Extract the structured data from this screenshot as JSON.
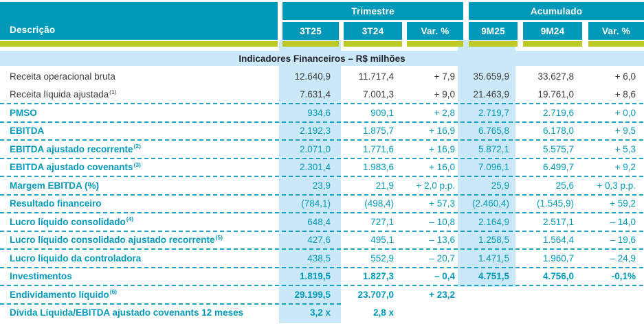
{
  "table": {
    "header": {
      "description_label": "Descrição",
      "groups": [
        {
          "label": "Trimestre",
          "cols": [
            "3T25",
            "3T24",
            "Var. %"
          ]
        },
        {
          "label": "Acumulado",
          "cols": [
            "9M25",
            "9M24",
            "Var. %"
          ]
        }
      ]
    },
    "section_title": "Indicadores Financeiros – R$ milhões",
    "rows": [
      {
        "label": "Receita operacional bruta",
        "sup": "",
        "style": "plain",
        "divider": "none",
        "values": [
          "12.640,9",
          "11.717,4",
          "+ 7,9",
          "35.659,9",
          "33.627,8",
          "+ 6,0"
        ]
      },
      {
        "label": "Receita líquida ajustada",
        "sup": "(1)",
        "style": "plain",
        "divider": "full",
        "values": [
          "7.631,4",
          "7.001,3",
          "+ 9,0",
          "21.463,9",
          "19.761,0",
          "+ 8,6"
        ]
      },
      {
        "label": "PMSO",
        "sup": "",
        "style": "teal",
        "divider": "full",
        "values": [
          "934,6",
          "909,1",
          "+ 2,8",
          "2.719,7",
          "2.719,6",
          "+ 0,0"
        ]
      },
      {
        "label": "EBITDA",
        "sup": "",
        "style": "teal",
        "divider": "full",
        "values": [
          "2.192,3",
          "1.875,7",
          "+ 16,9",
          "6.765,8",
          "6.178,0",
          "+ 9,5"
        ]
      },
      {
        "label": "EBITDA ajustado recorrente",
        "sup": "(2)",
        "style": "teal",
        "divider": "full",
        "values": [
          "2.071,0",
          "1.771,6",
          "+ 16,9",
          "5.872,1",
          "5.575,7",
          "+ 5,3"
        ]
      },
      {
        "label": "EBITDA ajustado covenants",
        "sup": "(3)",
        "style": "teal",
        "divider": "full",
        "values": [
          "2.301,4",
          "1.983,6",
          "+ 16,0",
          "7.096,1",
          "6.499,7",
          "+ 9,2"
        ]
      },
      {
        "label": "Margem EBITDA (%)",
        "sup": "",
        "style": "teal",
        "divider": "full",
        "values": [
          "23,9",
          "21,9",
          "+ 2,0 p.p.",
          "25,9",
          "25,6",
          "+ 0,3 p.p."
        ]
      },
      {
        "label": "Resultado financeiro",
        "sup": "",
        "style": "teal",
        "divider": "full",
        "values": [
          "(784,1)",
          "(498,4)",
          "+ 57,3",
          "(2.460,4)",
          "(1.545,9)",
          "+ 59,2"
        ]
      },
      {
        "label": "Lucro líquido consolidado",
        "sup": "(4)",
        "style": "teal",
        "divider": "full",
        "values": [
          "648,4",
          "727,1",
          "– 10,8",
          "2.164,9",
          "2.517,1",
          "– 14,0"
        ]
      },
      {
        "label": "Lucro líquido consolidado ajustado recorrente",
        "sup": "(5)",
        "style": "teal",
        "divider": "full",
        "values": [
          "427,6",
          "495,1",
          "– 13,6",
          "1.258,5",
          "1.564,4",
          "– 19,6"
        ]
      },
      {
        "label": "Lucro líquido da controladora",
        "sup": "",
        "style": "teal",
        "divider": "full",
        "values": [
          "438,5",
          "552,9",
          "– 20,7",
          "1.471,5",
          "1.960,7",
          "– 24,9"
        ]
      },
      {
        "label": "Investimentos",
        "sup": "",
        "style": "teal-bold",
        "divider": "full",
        "values": [
          "1.819,5",
          "1.827,3",
          "– 0,4",
          "4.751,5",
          "4.756,0",
          "-0,1%"
        ]
      },
      {
        "label": "Endividamento líquido",
        "sup": "(6)",
        "style": "teal-bold",
        "divider": "partial",
        "values": [
          "29.199,5",
          "23.707,0",
          "+ 23,2",
          "",
          "",
          ""
        ]
      },
      {
        "label": "Dívida Líquida/EBITDA ajustado covenants 12 meses",
        "sup": "",
        "style": "teal-bold",
        "divider": "none",
        "values": [
          "3,2 x",
          "2,8 x",
          "",
          "",
          "",
          ""
        ]
      }
    ],
    "colors": {
      "header_background": "#0099ba",
      "separator_bar": "#bdca25",
      "column_highlight": "#cbe8f8",
      "teal_text": "#0099ba",
      "dark_text": "#3b3b3a",
      "divider": "#1ba3c7"
    }
  }
}
